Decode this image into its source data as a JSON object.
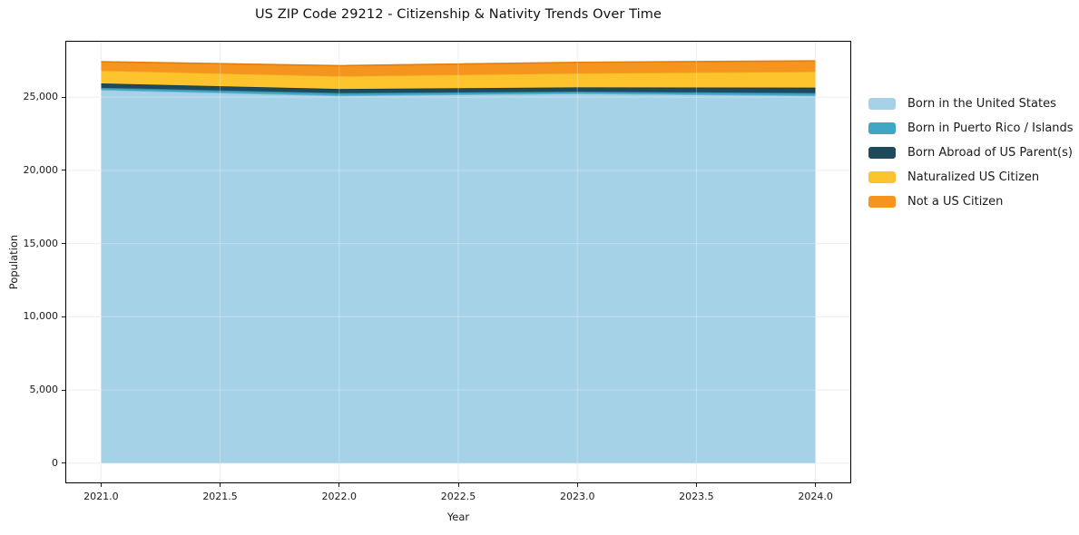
{
  "figure": {
    "background": "#ffffff"
  },
  "chart_data": {
    "type": "area",
    "stacked": true,
    "title": "US ZIP Code 29212 - Citizenship & Nativity Trends Over Time",
    "xlabel": "Year",
    "ylabel": "Population",
    "x": [
      2021,
      2022,
      2023,
      2024
    ],
    "series": [
      {
        "name": "Born in the United States",
        "color": "#A6D2E8",
        "edge": "#7FB8D9",
        "values": [
          25500,
          25110,
          25250,
          25110
        ]
      },
      {
        "name": "Born in Puerto Rico / Islands",
        "color": "#41A6C4",
        "edge": "#3490AE",
        "values": [
          140,
          170,
          130,
          170
        ]
      },
      {
        "name": "Born Abroad of US Parent(s)",
        "color": "#1F4A5C",
        "edge": "#16384A",
        "values": [
          300,
          280,
          290,
          370
        ]
      },
      {
        "name": "Naturalized US Citizen",
        "color": "#FCC32D",
        "edge": "#F0A41B",
        "values": [
          890,
          890,
          980,
          1110
        ]
      },
      {
        "name": "Not a US Citizen",
        "color": "#F5941F",
        "edge": "#E0800B",
        "values": [
          590,
          700,
          730,
          720
        ]
      }
    ],
    "xlim": [
      2020.85,
      2024.15
    ],
    "ylim": [
      -1370,
      28850
    ],
    "xticks": [
      2021.0,
      2021.5,
      2022.0,
      2022.5,
      2023.0,
      2023.5,
      2024.0
    ],
    "yticks": [
      0,
      5000,
      10000,
      15000,
      20000,
      25000
    ],
    "grid": true,
    "grid_color": "#e8e8e8",
    "grid_overlay_color": "rgba(255,255,255,0.30)",
    "spine_color": "#000000",
    "legend_position": "right"
  }
}
